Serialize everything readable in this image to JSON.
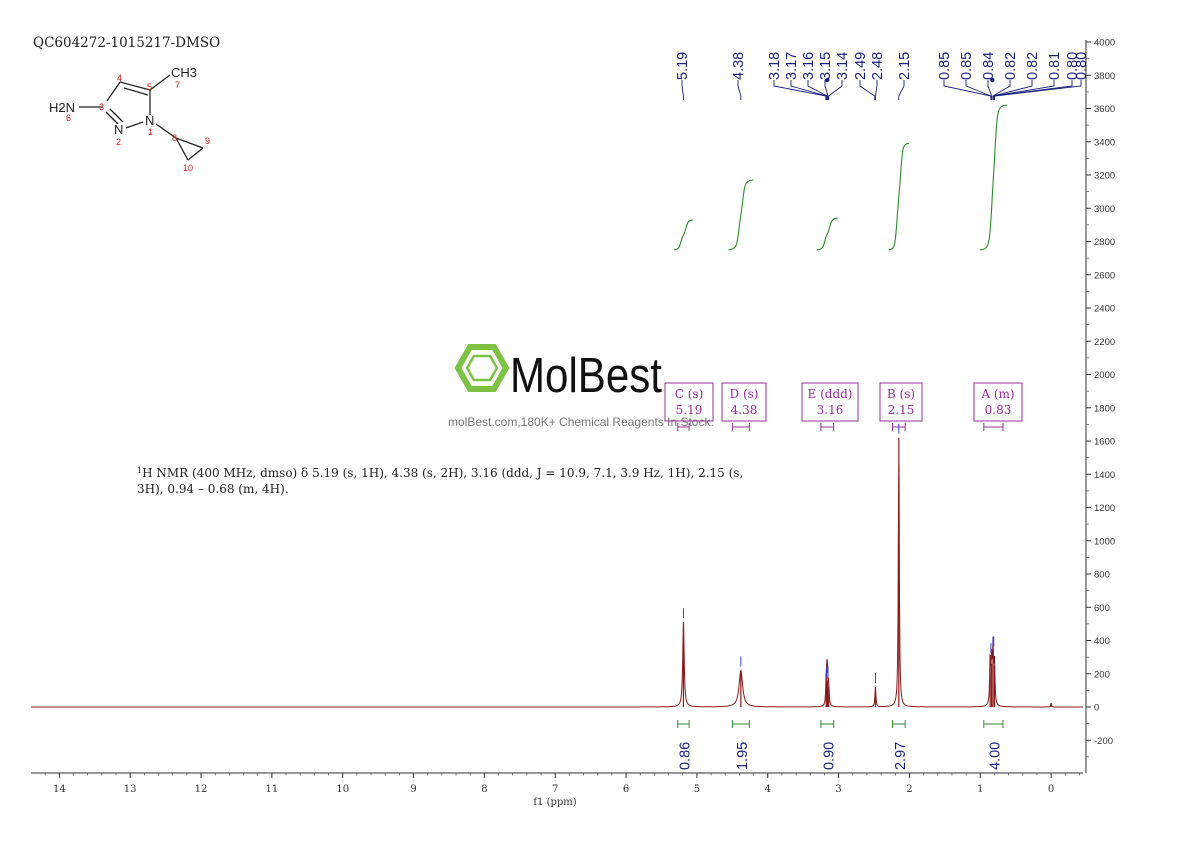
{
  "sample_id": "QC604272-1015217-DMSO",
  "structure": {
    "atoms": [
      {
        "id": "nh2",
        "label": "H2N"
      },
      {
        "id": "n2",
        "label": "N"
      },
      {
        "id": "n1",
        "label": "N"
      },
      {
        "id": "ch3",
        "label": "CH3"
      }
    ],
    "numbering": [
      "1",
      "2",
      "3",
      "4",
      "5",
      "6",
      "7",
      "8",
      "9",
      "10"
    ]
  },
  "watermark": {
    "brand": "MolBest",
    "tagline": "molBest.com,180K+ Chemical Reagents In Stock."
  },
  "nmr_description": {
    "line1": "H NMR (400 MHz, dmso) δ 5.19 (s, 1H), 4.38 (s, 2H), 3.16 (ddd, J = 10.9, 7.1, 3.9 Hz, 1H), 2.15 (s,",
    "line1_sup": "1",
    "line2": "3H), 0.94 – 0.68 (m, 4H)."
  },
  "chart_data": {
    "type": "line",
    "xlabel": "f1 (ppm)",
    "xlim": [
      14.4,
      -0.45
    ],
    "x_ticks": [
      14,
      13,
      12,
      11,
      10,
      9,
      8,
      7,
      6,
      5,
      4,
      3,
      2,
      1,
      0
    ],
    "ylim": [
      -400,
      4000
    ],
    "y_ticks": [
      -200,
      0,
      200,
      400,
      600,
      800,
      1000,
      1200,
      1400,
      1600,
      1800,
      2000,
      2200,
      2400,
      2600,
      2800,
      3000,
      3200,
      3400,
      3600,
      3800,
      4000
    ],
    "peaks": [
      {
        "ppm": 5.19,
        "height": 510,
        "width": 0.012
      },
      {
        "ppm": 4.38,
        "height": 220,
        "width": 0.03
      },
      {
        "ppm": 3.175,
        "height": 150,
        "width": 0.007
      },
      {
        "ppm": 3.165,
        "height": 180,
        "width": 0.007
      },
      {
        "ppm": 3.155,
        "height": 160,
        "width": 0.007
      },
      {
        "ppm": 3.14,
        "height": 120,
        "width": 0.007
      },
      {
        "ppm": 2.48,
        "height": 120,
        "width": 0.008
      },
      {
        "ppm": 2.15,
        "height": 1620,
        "width": 0.008
      },
      {
        "ppm": 0.86,
        "height": 300,
        "width": 0.008
      },
      {
        "ppm": 0.84,
        "height": 260,
        "width": 0.008
      },
      {
        "ppm": 0.82,
        "height": 340,
        "width": 0.008
      },
      {
        "ppm": 0.8,
        "height": 250,
        "width": 0.008
      },
      {
        "ppm": 0.0,
        "height": 25,
        "width": 0.006
      }
    ],
    "peak_labels": [
      {
        "label": "5.19",
        "ppm": 5.19
      },
      {
        "label": "4.38",
        "ppm": 4.38
      },
      {
        "label": "3.18",
        "ppm": 3.18
      },
      {
        "label": "3.17",
        "ppm": 3.17
      },
      {
        "label": "3.16",
        "ppm": 3.16
      },
      {
        "label": "3.15",
        "ppm": 3.15
      },
      {
        "label": "3.14",
        "ppm": 3.14
      },
      {
        "label": "2.49",
        "ppm": 2.49
      },
      {
        "label": "2.48",
        "ppm": 2.48
      },
      {
        "label": "2.15",
        "ppm": 2.15
      },
      {
        "label": "0.85",
        "ppm": 0.85
      },
      {
        "label": "0.85",
        "ppm": 0.85
      },
      {
        "label": "0.84",
        "ppm": 0.84
      },
      {
        "label": "0.82",
        "ppm": 0.82
      },
      {
        "label": "0.82",
        "ppm": 0.82
      },
      {
        "label": "0.81",
        "ppm": 0.81
      },
      {
        "label": "0.80",
        "ppm": 0.8
      },
      {
        "label": "0.80",
        "ppm": 0.8
      }
    ],
    "integrals": [
      {
        "value": "0.86",
        "from": 5.27,
        "to": 5.11,
        "curve_low": 2750,
        "curve_high": 2930
      },
      {
        "value": "1.95",
        "from": 4.5,
        "to": 4.26,
        "curve_low": 2750,
        "curve_high": 3170
      },
      {
        "value": "0.90",
        "from": 3.25,
        "to": 3.07,
        "curve_low": 2750,
        "curve_high": 2940
      },
      {
        "value": "2.97",
        "from": 2.24,
        "to": 2.06,
        "curve_low": 2750,
        "curve_high": 3390
      },
      {
        "value": "4.00",
        "from": 0.95,
        "to": 0.68,
        "curve_low": 2750,
        "curve_high": 3620
      }
    ],
    "multiplets": [
      {
        "name": "C (s)",
        "shift": "5.19",
        "ppm": 5.19,
        "from": 5.27,
        "to": 5.11
      },
      {
        "name": "D (s)",
        "shift": "4.38",
        "ppm": 4.38,
        "from": 4.5,
        "to": 4.26
      },
      {
        "name": "E (ddd)",
        "shift": "3.16",
        "ppm": 3.16,
        "from": 3.25,
        "to": 3.07
      },
      {
        "name": "B (s)",
        "shift": "2.15",
        "ppm": 2.15,
        "from": 2.24,
        "to": 2.06
      },
      {
        "name": "A (m)",
        "shift": "0.83",
        "ppm": 0.83,
        "from": 0.95,
        "to": 0.68
      }
    ],
    "colors": {
      "spectrum": "#8b1a1a",
      "peak_label": "#1a1f7a",
      "integral": "#2e8b2e",
      "multiplet": "#9b2d9b",
      "axis": "#333333",
      "watermark": "#7dc242"
    }
  }
}
